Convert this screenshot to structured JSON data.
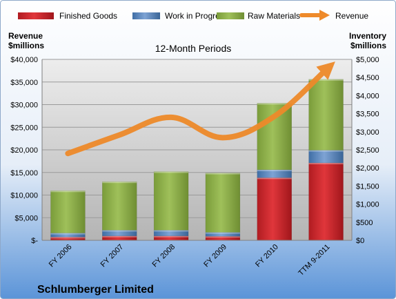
{
  "chart_data": {
    "type": "bar",
    "subtitle": "12-Month Periods",
    "company": "Schlumberger Limited",
    "ylabel_left_line1": "Revenue",
    "ylabel_left_line2": "$millions",
    "ylabel_right_line1": "Inventory",
    "ylabel_right_line2": "$millions",
    "categories": [
      "FY 2006",
      "FY 2007",
      "FY 2008",
      "FY 2009",
      "FY 2010",
      "TTM 9-2011"
    ],
    "left_axis": {
      "ylim": [
        0,
        40000
      ],
      "ticks": [
        "$-",
        "$5,000",
        "$10,000",
        "$15,000",
        "$20,000",
        "$25,000",
        "$30,000",
        "$35,000",
        "$40,000"
      ]
    },
    "right_axis": {
      "ylim": [
        0,
        5000
      ],
      "ticks": [
        "$0",
        "$500",
        "$1,000",
        "$1,500",
        "$2,000",
        "$2,500",
        "$3,000",
        "$3,500",
        "$4,000",
        "$4,500",
        "$5,000"
      ]
    },
    "series": [
      {
        "name": "Finished Goods",
        "axis": "right",
        "values": [
          90,
          120,
          120,
          110,
          1730,
          2140
        ],
        "color": "#c0262b"
      },
      {
        "name": "Work in Progress",
        "axis": "right",
        "values": [
          110,
          160,
          160,
          110,
          220,
          350
        ],
        "color": "#4f81bd"
      },
      {
        "name": "Raw Materials",
        "axis": "right",
        "values": [
          1170,
          1340,
          1620,
          1640,
          1840,
          1960
        ],
        "color": "#8aac45"
      },
      {
        "name": "Revenue",
        "axis": "left",
        "type": "line",
        "values": [
          19200,
          23300,
          27200,
          22700,
          27400,
          37700
        ],
        "color": "#ee8a2a"
      }
    ],
    "grid": true,
    "legend_position": "top"
  }
}
